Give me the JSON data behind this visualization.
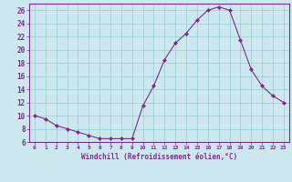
{
  "x": [
    0,
    1,
    2,
    3,
    4,
    5,
    6,
    7,
    8,
    9,
    10,
    11,
    12,
    13,
    14,
    15,
    16,
    17,
    18,
    19,
    20,
    21,
    22,
    23
  ],
  "y": [
    10,
    9.5,
    8.5,
    8,
    7.5,
    7,
    6.5,
    6.5,
    6.5,
    6.5,
    11.5,
    14.5,
    18.5,
    21,
    22.5,
    24.5,
    26,
    26.5,
    26,
    21.5,
    17,
    14.5,
    13,
    12
  ],
  "line_color": "#7b2d8b",
  "marker_color": "#7b2d8b",
  "bg_color": "#cce8ee",
  "grid_color": "#99ccd6",
  "xlabel": "Windchill (Refroidissement éolien,°C)",
  "ylim": [
    6,
    27
  ],
  "yticks": [
    6,
    8,
    10,
    12,
    14,
    16,
    18,
    20,
    22,
    24,
    26
  ],
  "xlim": [
    -0.5,
    23.5
  ],
  "xticks": [
    0,
    1,
    2,
    3,
    4,
    5,
    6,
    7,
    8,
    9,
    10,
    11,
    12,
    13,
    14,
    15,
    16,
    17,
    18,
    19,
    20,
    21,
    22,
    23
  ],
  "tick_color": "#7b2d8b",
  "axis_color": "#7b2d8b",
  "font_color": "#7b2d8b"
}
